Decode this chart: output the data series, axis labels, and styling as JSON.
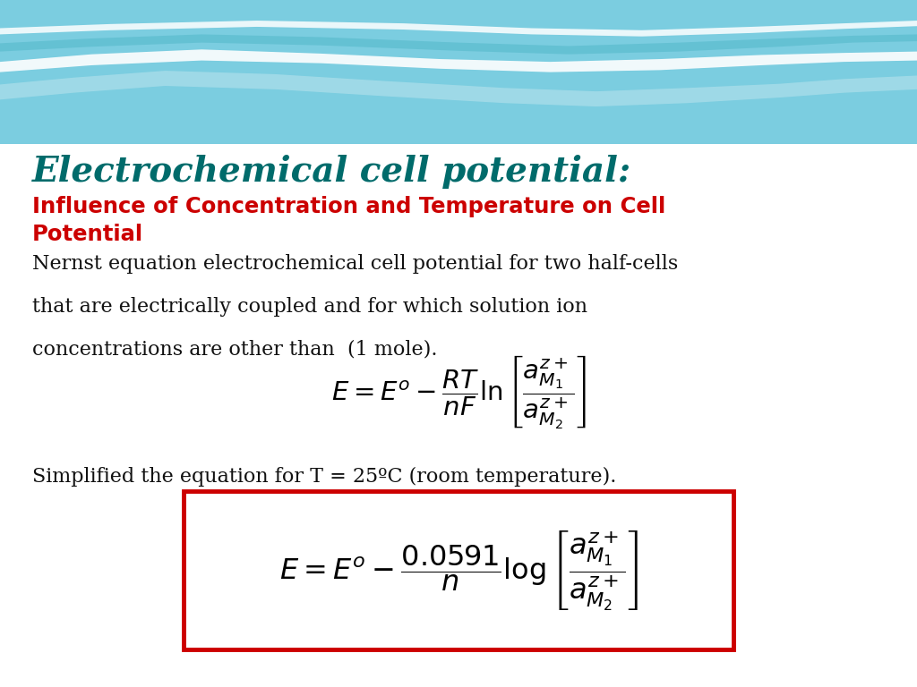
{
  "title": "Electrochemical cell potential:",
  "title_color": "#006B6B",
  "subtitle_line1": "Influence of Concentration and Temperature on Cell",
  "subtitle_line2": "Potential",
  "subtitle_color": "#CC0000",
  "body_lines": [
    "Nernst equation electrochemical cell potential for two half-cells",
    "that are electrically coupled and for which solution ion",
    "concentrations are other than  (1 mole)."
  ],
  "body_color": "#111111",
  "simplified_text": "Simplified the equation for T = 25ºC (room temperature).",
  "simplified_color": "#111111",
  "box_edge_color": "#CC0000",
  "bg_main_color": "#FFFFFF",
  "bg_top_color": "#7DD8E8",
  "wave1_color": "#87CEDC",
  "wave2_color": "#B0E0EC",
  "wave3_color": "#FFFFFF",
  "wave4_color": "#5BBCCE"
}
